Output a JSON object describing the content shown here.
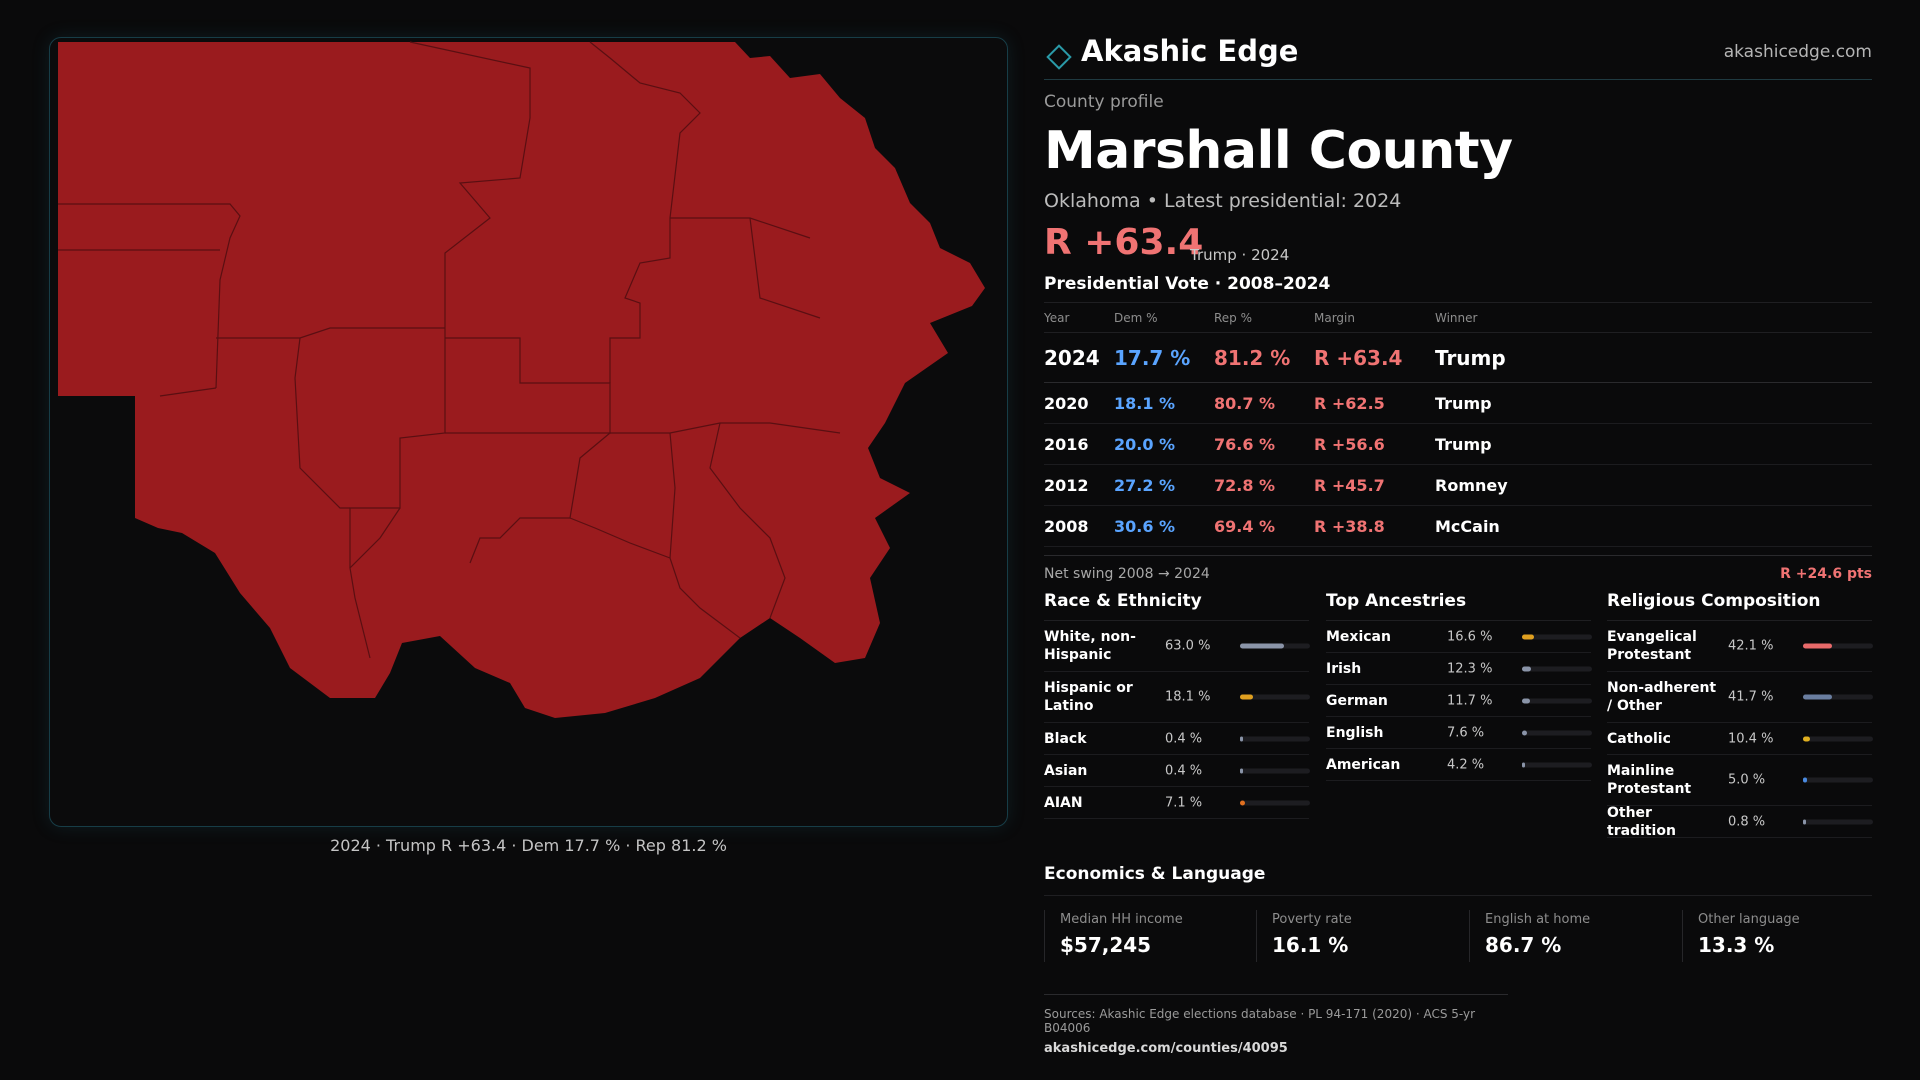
{
  "brand": {
    "name": "Akashic Edge",
    "url": "akashicedge.com"
  },
  "profile": {
    "kicker": "County profile",
    "county": "Marshall County",
    "subtitle": "Oklahoma • Latest presidential: 2024",
    "headline_margin": "R +63.4",
    "headline_who": "Trump · 2024"
  },
  "map": {
    "caption": "2024 · Trump R +63.4 · Dem 17.7 % · Rep 81.2 %",
    "fill_color": "#9a1b1e",
    "border_color": "#5a0f12"
  },
  "votes": {
    "title": "Presidential Vote · 2008–2024",
    "headers": {
      "year": "Year",
      "dem": "Dem %",
      "rep": "Rep %",
      "margin": "Margin",
      "winner": "Winner"
    },
    "rows": [
      {
        "year": "2024",
        "dem": "17.7 %",
        "rep": "81.2 %",
        "margin": "R +63.4",
        "winner": "Trump"
      },
      {
        "year": "2020",
        "dem": "18.1 %",
        "rep": "80.7 %",
        "margin": "R +62.5",
        "winner": "Trump"
      },
      {
        "year": "2016",
        "dem": "20.0 %",
        "rep": "76.6 %",
        "margin": "R +56.6",
        "winner": "Trump"
      },
      {
        "year": "2012",
        "dem": "27.2 %",
        "rep": "72.8 %",
        "margin": "R +45.7",
        "winner": "Romney"
      },
      {
        "year": "2008",
        "dem": "30.6 %",
        "rep": "69.4 %",
        "margin": "R +38.8",
        "winner": "McCain"
      }
    ],
    "swing_label": "Net swing 2008 → 2024",
    "swing_value": "R +24.6 pts"
  },
  "race": {
    "title": "Race & Ethnicity",
    "items": [
      {
        "name": "White, non-Hispanic",
        "pct": "63.0 %",
        "value": 63.0,
        "color": "#8a94a8"
      },
      {
        "name": "Hispanic or Latino",
        "pct": "18.1 %",
        "value": 18.1,
        "color": "#e0a020"
      },
      {
        "name": "Black",
        "pct": "0.4 %",
        "value": 0.4,
        "color": "#8a94a8"
      },
      {
        "name": "Asian",
        "pct": "0.4 %",
        "value": 0.4,
        "color": "#8a94a8"
      },
      {
        "name": "AIAN",
        "pct": "7.1 %",
        "value": 7.1,
        "color": "#e07020"
      }
    ]
  },
  "ancestry": {
    "title": "Top Ancestries",
    "items": [
      {
        "name": "Mexican",
        "pct": "16.6 %",
        "value": 16.6,
        "color": "#e0a020"
      },
      {
        "name": "Irish",
        "pct": "12.3 %",
        "value": 12.3,
        "color": "#8a94a8"
      },
      {
        "name": "German",
        "pct": "11.7 %",
        "value": 11.7,
        "color": "#8a94a8"
      },
      {
        "name": "English",
        "pct": "7.6 %",
        "value": 7.6,
        "color": "#8a94a8"
      },
      {
        "name": "American",
        "pct": "4.2 %",
        "value": 4.2,
        "color": "#8a94a8"
      }
    ]
  },
  "religion": {
    "title": "Religious Composition",
    "items": [
      {
        "name": "Evangelical Protestant",
        "pct": "42.1 %",
        "value": 42.1,
        "color": "#e86a6a"
      },
      {
        "name": "Non-adherent / Other",
        "pct": "41.7 %",
        "value": 41.7,
        "color": "#6a7ea0"
      },
      {
        "name": "Catholic",
        "pct": "10.4 %",
        "value": 10.4,
        "color": "#e0b020"
      },
      {
        "name": "Mainline Protestant",
        "pct": "5.0 %",
        "value": 5.0,
        "color": "#4a8ae0"
      },
      {
        "name": "Other tradition",
        "pct": "0.8 %",
        "value": 0.8,
        "color": "#8a94a8"
      }
    ]
  },
  "economics": {
    "title": "Economics & Language",
    "items": [
      {
        "label": "Median HH income",
        "value": "$57,245"
      },
      {
        "label": "Poverty rate",
        "value": "16.1 %"
      },
      {
        "label": "English at home",
        "value": "86.7 %"
      },
      {
        "label": "Other language",
        "value": "13.3 %"
      }
    ]
  },
  "sources": {
    "line": "Sources: Akashic Edge elections database · PL 94-171 (2020) · ACS 5-yr B04006",
    "url": "akashicedge.com/counties/40095"
  }
}
